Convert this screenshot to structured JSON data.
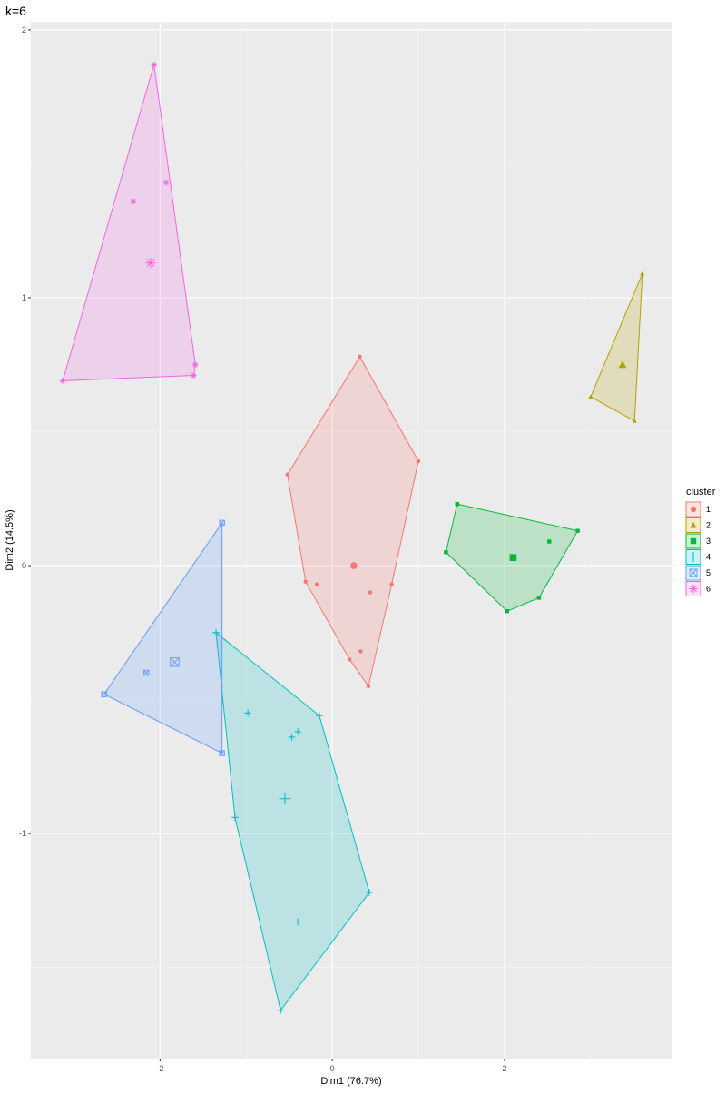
{
  "chart_data": {
    "type": "scatter",
    "title": "k=6",
    "xlabel": "Dim1 (76.7%)",
    "ylabel": "Dim2 (14.5%)",
    "xlim": [
      -3.5,
      3.95
    ],
    "ylim": [
      -1.84,
      2.03
    ],
    "xticks": [
      -2,
      0,
      2
    ],
    "xtick_labels": [
      "-2",
      "0",
      "2"
    ],
    "yticks": [
      -1,
      0,
      1,
      2
    ],
    "ytick_labels": [
      "-1",
      "0",
      "1",
      "2"
    ],
    "grid": true,
    "legend": {
      "title": "cluster",
      "position": "right"
    },
    "clusters": [
      {
        "id": "1",
        "color": "#F8766D",
        "shape": "circle",
        "hull": [
          [
            0.32,
            0.78
          ],
          [
            1.0,
            0.39
          ],
          [
            0.69,
            -0.07
          ],
          [
            0.42,
            -0.45
          ],
          [
            0.2,
            -0.35
          ],
          [
            -0.31,
            -0.06
          ],
          [
            -0.52,
            0.34
          ]
        ],
        "points": [
          [
            0.32,
            0.78
          ],
          [
            1.0,
            0.39
          ],
          [
            -0.52,
            0.34
          ],
          [
            -0.31,
            -0.06
          ],
          [
            -0.18,
            -0.07
          ],
          [
            0.69,
            -0.07
          ],
          [
            0.44,
            -0.1
          ],
          [
            0.33,
            -0.32
          ],
          [
            0.2,
            -0.35
          ],
          [
            0.42,
            -0.45
          ]
        ],
        "center": [
          0.25,
          0.0
        ]
      },
      {
        "id": "2",
        "color": "#B79F00",
        "shape": "triangle",
        "hull": [
          [
            3.6,
            1.09
          ],
          [
            3.51,
            0.54
          ],
          [
            3.0,
            0.63
          ]
        ],
        "points": [
          [
            3.6,
            1.09
          ],
          [
            3.0,
            0.63
          ],
          [
            3.51,
            0.54
          ]
        ],
        "center": [
          3.37,
          0.75
        ]
      },
      {
        "id": "3",
        "color": "#00BA38",
        "shape": "square",
        "hull": [
          [
            1.45,
            0.23
          ],
          [
            2.85,
            0.13
          ],
          [
            2.4,
            -0.12
          ],
          [
            2.03,
            -0.17
          ],
          [
            1.32,
            0.05
          ]
        ],
        "points": [
          [
            1.45,
            0.23
          ],
          [
            2.85,
            0.13
          ],
          [
            2.52,
            0.09
          ],
          [
            1.32,
            0.05
          ],
          [
            2.4,
            -0.12
          ],
          [
            2.03,
            -0.17
          ]
        ],
        "center": [
          2.1,
          0.03
        ]
      },
      {
        "id": "4",
        "color": "#00BFC4",
        "shape": "plus",
        "hull": [
          [
            -1.35,
            -0.25
          ],
          [
            -0.15,
            -0.56
          ],
          [
            0.43,
            -1.22
          ],
          [
            -0.6,
            -1.66
          ],
          [
            -1.13,
            -0.94
          ]
        ],
        "points": [
          [
            -1.35,
            -0.25
          ],
          [
            -0.15,
            -0.56
          ],
          [
            -0.98,
            -0.55
          ],
          [
            -0.4,
            -0.62
          ],
          [
            -0.47,
            -0.64
          ],
          [
            -1.13,
            -0.94
          ],
          [
            0.43,
            -1.22
          ],
          [
            -0.4,
            -1.33
          ],
          [
            -0.6,
            -1.66
          ]
        ],
        "center": [
          -0.55,
          -0.87
        ]
      },
      {
        "id": "5",
        "color": "#619CFF",
        "shape": "square-x",
        "hull": [
          [
            -1.28,
            0.16
          ],
          [
            -1.28,
            -0.7
          ],
          [
            -2.65,
            -0.48
          ]
        ],
        "points": [
          [
            -1.28,
            0.16
          ],
          [
            -2.16,
            -0.4
          ],
          [
            -2.65,
            -0.48
          ],
          [
            -1.28,
            -0.7
          ]
        ],
        "center": [
          -1.83,
          -0.36
        ]
      },
      {
        "id": "6",
        "color": "#F564E3",
        "shape": "asterisk",
        "hull": [
          [
            -2.07,
            1.87
          ],
          [
            -1.59,
            0.75
          ],
          [
            -1.61,
            0.71
          ],
          [
            -3.13,
            0.69
          ]
        ],
        "points": [
          [
            -2.07,
            1.87
          ],
          [
            -1.93,
            1.43
          ],
          [
            -2.31,
            1.36
          ],
          [
            -1.59,
            0.75
          ],
          [
            -1.61,
            0.71
          ],
          [
            -3.13,
            0.69
          ]
        ],
        "center": [
          -2.11,
          1.13
        ]
      }
    ]
  }
}
